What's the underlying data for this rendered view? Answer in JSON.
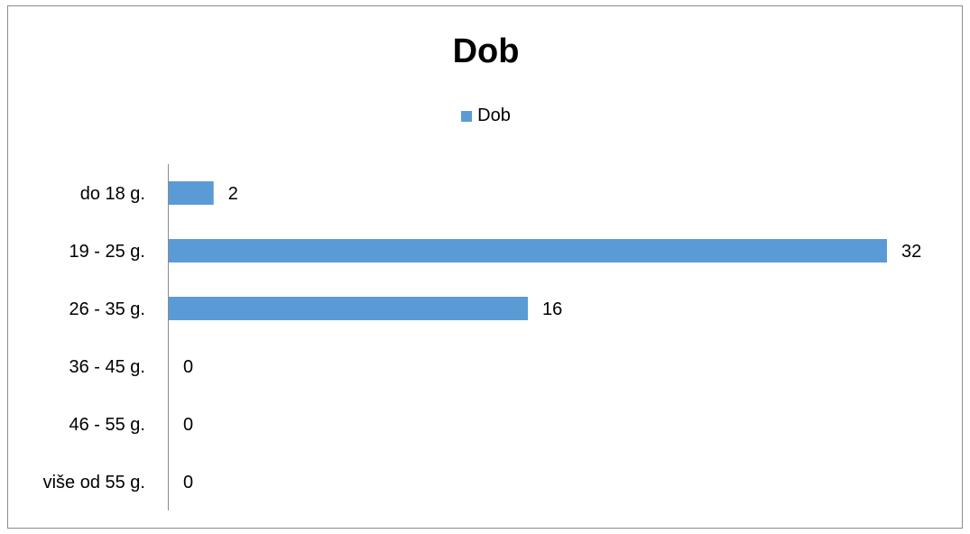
{
  "chart_data": {
    "type": "bar",
    "orientation": "horizontal",
    "title": "Dob",
    "categories": [
      "do 18 g.",
      "19 - 25 g.",
      "26 - 35 g.",
      "36 - 45 g.",
      "46 - 55 g.",
      "više od 55 g."
    ],
    "series": [
      {
        "name": "Dob",
        "values": [
          2,
          32,
          16,
          0,
          0,
          0
        ],
        "color": "#5b9bd5"
      }
    ],
    "xlim": [
      0,
      32
    ],
    "legend": "top-center",
    "grid": false,
    "data_labels": true
  }
}
